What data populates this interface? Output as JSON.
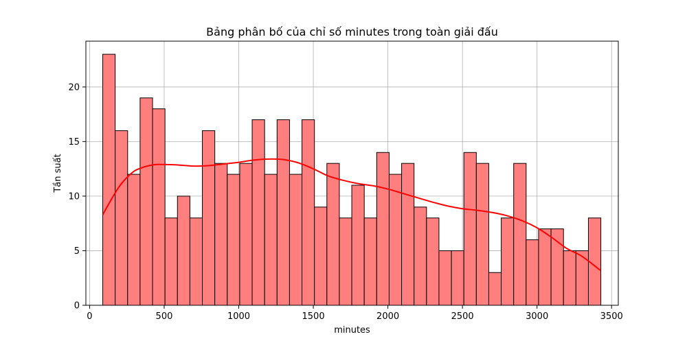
{
  "chart_data": {
    "type": "bar",
    "subtype": "histogram with kde",
    "title": "Bảng phân bố của chỉ số minutes trong toàn giải đấu",
    "xlabel": "minutes",
    "ylabel": "Tần suất",
    "xlim": [
      -25,
      3545
    ],
    "ylim": [
      0,
      24.2
    ],
    "x_ticks": [
      0,
      500,
      1000,
      1500,
      2000,
      2500,
      3000,
      3500
    ],
    "y_ticks": [
      0,
      5,
      10,
      15,
      20
    ],
    "grid": true,
    "bar_color": "#ff7f7f",
    "bar_edge_color": "#000000",
    "kde_color": "#ff0000",
    "bin_start": 88,
    "bin_width": 83.5,
    "counts": [
      23,
      16,
      12,
      19,
      18,
      8,
      10,
      8,
      16,
      13,
      12,
      13,
      17,
      12,
      17,
      12,
      17,
      9,
      13,
      8,
      11,
      8,
      14,
      12,
      13,
      9,
      8,
      5,
      5,
      14,
      13,
      3,
      8,
      13,
      6,
      7,
      7,
      5,
      5,
      8
    ],
    "kde": {
      "x": [
        88,
        150,
        200,
        250,
        300,
        350,
        400,
        450,
        500,
        600,
        700,
        800,
        900,
        1000,
        1100,
        1200,
        1300,
        1400,
        1500,
        1600,
        1700,
        1800,
        1900,
        2000,
        2100,
        2200,
        2300,
        2400,
        2500,
        2600,
        2700,
        2800,
        2900,
        3000,
        3100,
        3200,
        3300,
        3425
      ],
      "y": [
        8.3,
        9.8,
        10.9,
        11.7,
        12.3,
        12.6,
        12.8,
        12.9,
        12.9,
        12.85,
        12.75,
        12.8,
        12.95,
        13.1,
        13.3,
        13.4,
        13.35,
        13.05,
        12.5,
        11.85,
        11.45,
        11.15,
        10.95,
        10.65,
        10.25,
        9.85,
        9.45,
        9.1,
        8.85,
        8.7,
        8.5,
        8.2,
        7.75,
        7.1,
        6.2,
        5.2,
        4.5,
        3.2
      ]
    }
  }
}
